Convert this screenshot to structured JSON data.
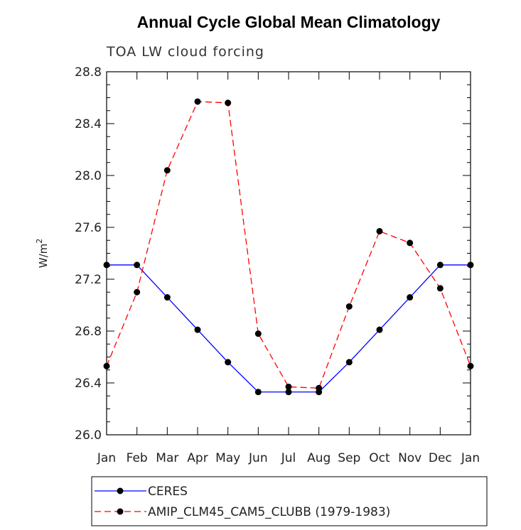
{
  "chart_data": {
    "type": "line",
    "title": "Annual Cycle Global Mean Climatology",
    "subtitle": "TOA LW cloud forcing",
    "ylabel": "W/m",
    "ylabel_superscript": "2",
    "ylim": [
      26.0,
      28.8
    ],
    "yticks": [
      "26.0",
      "26.4",
      "26.8",
      "27.2",
      "27.6",
      "28.0",
      "28.4",
      "28.8"
    ],
    "ytick_values": [
      26.0,
      26.4,
      26.8,
      27.2,
      27.6,
      28.0,
      28.4,
      28.8
    ],
    "categories": [
      "Jan",
      "Feb",
      "Mar",
      "Apr",
      "May",
      "Jun",
      "Jul",
      "Aug",
      "Sep",
      "Oct",
      "Nov",
      "Dec",
      "Jan"
    ],
    "grid": false,
    "legend_position": "bottom",
    "series": [
      {
        "name": "CERES",
        "color": "#0000ff",
        "dash": "solid",
        "values": [
          27.31,
          27.31,
          27.06,
          26.81,
          26.56,
          26.33,
          26.33,
          26.33,
          26.56,
          26.81,
          27.06,
          27.31,
          27.31
        ]
      },
      {
        "name": "AMIP_CLM45_CAM5_CLUBB (1979-1983)",
        "color": "#ff0000",
        "dash": "dashed",
        "values": [
          26.53,
          27.1,
          28.04,
          28.57,
          28.56,
          26.78,
          26.37,
          26.36,
          26.99,
          27.57,
          27.48,
          27.13,
          26.53
        ]
      }
    ]
  }
}
